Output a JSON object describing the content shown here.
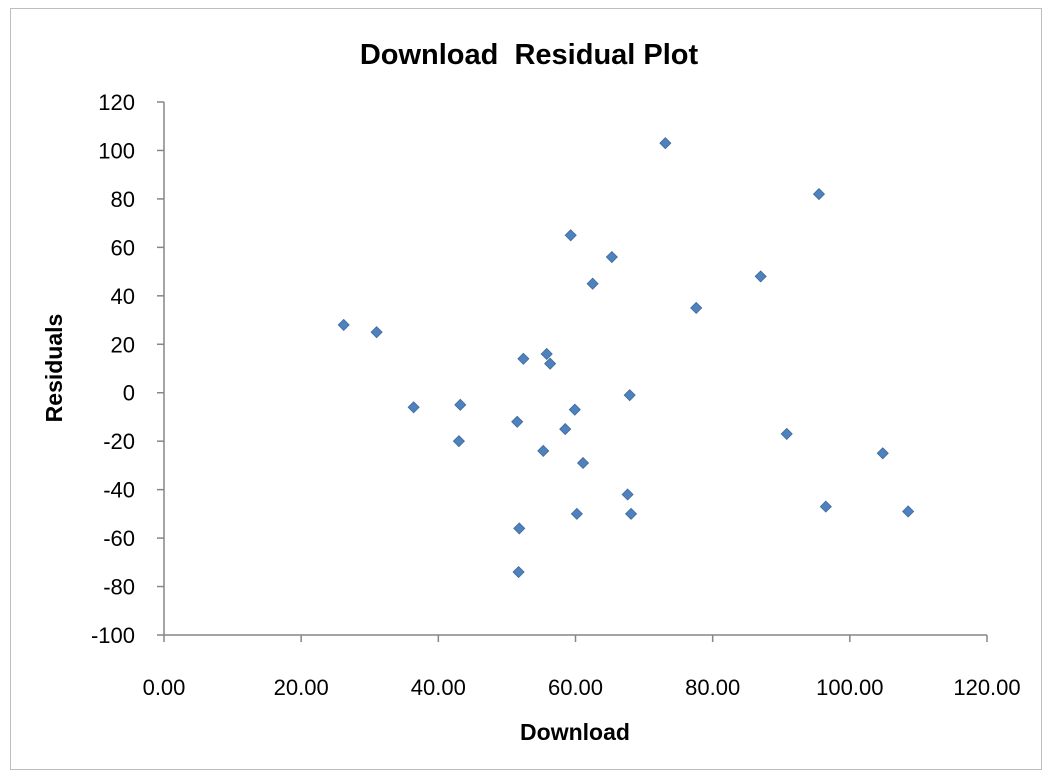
{
  "chart_data": {
    "type": "scatter",
    "title": "Download  Residual Plot",
    "xlabel": "Download",
    "ylabel": "Residuals",
    "xlim": [
      0,
      120
    ],
    "ylim": [
      -100,
      120
    ],
    "x_ticks": [
      0,
      20,
      40,
      60,
      80,
      100,
      120
    ],
    "y_ticks": [
      -100,
      -80,
      -60,
      -40,
      -20,
      0,
      20,
      40,
      60,
      80,
      100,
      120
    ],
    "x_tick_labels": [
      "0.00",
      "20.00",
      "40.00",
      "60.00",
      "80.00",
      "100.00",
      "120.00"
    ],
    "y_tick_labels": [
      "-100",
      "-80",
      "-60",
      "-40",
      "-20",
      "0",
      "20",
      "40",
      "60",
      "80",
      "100",
      "120"
    ],
    "grid": false,
    "marker": "diamond",
    "color": "#4f81bd",
    "x": [
      26.2,
      31.0,
      36.4,
      43.0,
      43.2,
      51.5,
      51.7,
      51.8,
      52.4,
      55.3,
      55.8,
      56.3,
      58.5,
      59.3,
      59.9,
      60.2,
      61.1,
      62.5,
      65.3,
      67.6,
      67.9,
      68.1,
      73.1,
      77.6,
      87.0,
      90.8,
      95.5,
      96.5,
      104.8,
      108.5
    ],
    "y": [
      28,
      25,
      -6,
      -20,
      -5,
      -12,
      -74,
      -56,
      14,
      -24,
      16,
      12,
      -15,
      65,
      -7,
      -50,
      -29,
      45,
      56,
      -42,
      -1,
      -50,
      103,
      35,
      48,
      -17,
      82,
      -47,
      -25,
      -49
    ]
  }
}
